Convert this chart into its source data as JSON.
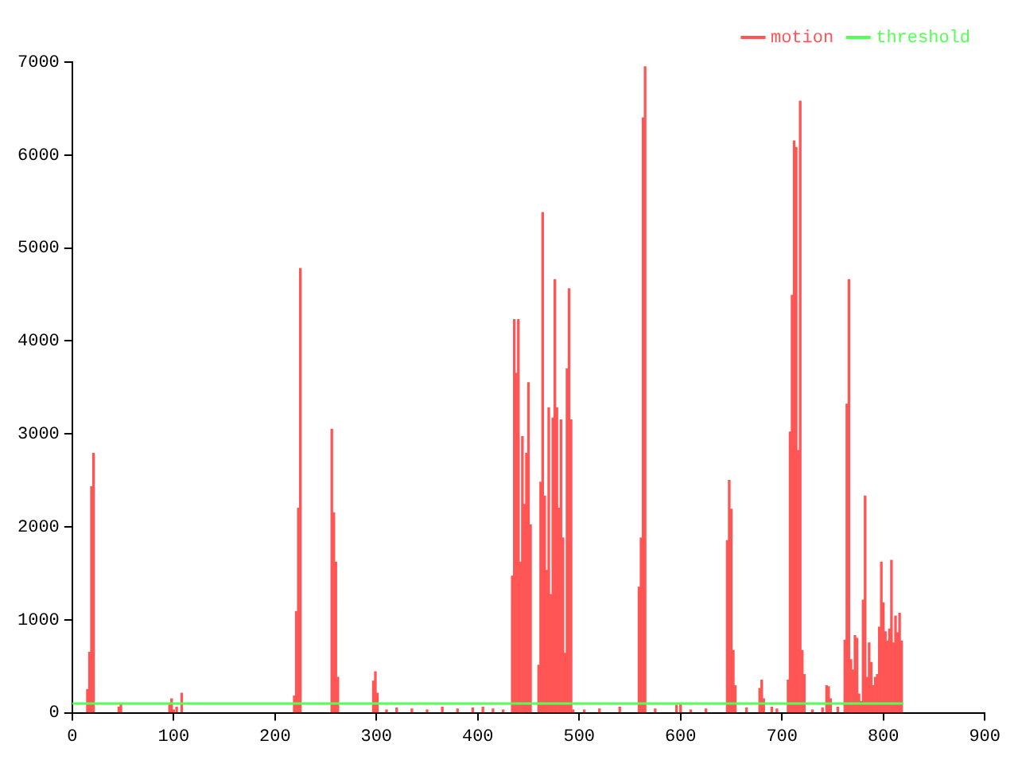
{
  "chart_data": {
    "type": "bar",
    "xlim": [
      0,
      900
    ],
    "xticks": [
      0,
      100,
      200,
      300,
      400,
      500,
      600,
      700,
      800,
      900
    ],
    "ylim": [
      0,
      7000
    ],
    "yticks": [
      0,
      1000,
      2000,
      3000,
      4000,
      5000,
      6000,
      7000
    ],
    "grid": false,
    "legend": "top right",
    "series": [
      {
        "name": "motion",
        "color": "#ff5555",
        "x": [
          15,
          17,
          19,
          21,
          46,
          48,
          96,
          98,
          100,
          103,
          108,
          219,
          221,
          223,
          225,
          256,
          258,
          260,
          262,
          297,
          299,
          301,
          310,
          320,
          335,
          350,
          365,
          380,
          395,
          405,
          415,
          425,
          434,
          436,
          438,
          440,
          442,
          444,
          446,
          448,
          450,
          452,
          460,
          462,
          464,
          466,
          468,
          470,
          472,
          474,
          476,
          478,
          480,
          482,
          484,
          486,
          488,
          490,
          492,
          494,
          505,
          520,
          540,
          559,
          561,
          563,
          565,
          575,
          596,
          600,
          610,
          625,
          646,
          648,
          650,
          652,
          654,
          665,
          678,
          680,
          682,
          690,
          695,
          706,
          708,
          710,
          712,
          714,
          716,
          718,
          720,
          722,
          730,
          740,
          744,
          746,
          748,
          755,
          762,
          764,
          766,
          768,
          770,
          772,
          774,
          776,
          778,
          780,
          782,
          784,
          786,
          788,
          790,
          792,
          794,
          796,
          798,
          800,
          802,
          804,
          806,
          808,
          810,
          812,
          814,
          816,
          818
        ],
        "values": [
          250,
          650,
          2430,
          2790,
          60,
          100,
          100,
          150,
          30,
          60,
          210,
          180,
          1090,
          2200,
          4780,
          3050,
          2150,
          1620,
          380,
          340,
          440,
          210,
          30,
          50,
          40,
          30,
          60,
          40,
          50,
          60,
          40,
          30,
          1470,
          4230,
          3650,
          4230,
          1620,
          2970,
          2240,
          2790,
          3550,
          2020,
          510,
          2480,
          5380,
          2330,
          1530,
          3280,
          1270,
          3170,
          4660,
          3280,
          2200,
          3150,
          1880,
          640,
          3700,
          4560,
          3150,
          30,
          30,
          40,
          60,
          1350,
          1880,
          6400,
          6950,
          40,
          80,
          100,
          30,
          40,
          1850,
          2500,
          2190,
          670,
          290,
          50,
          260,
          350,
          150,
          60,
          40,
          350,
          3020,
          4490,
          6150,
          6080,
          2820,
          6580,
          670,
          410,
          30,
          50,
          290,
          280,
          150,
          60,
          780,
          3320,
          4660,
          570,
          460,
          830,
          800,
          200,
          120,
          1210,
          2330,
          380,
          750,
          540,
          290,
          380,
          410,
          920,
          1620,
          1180,
          870,
          770,
          900,
          1640,
          750,
          1040,
          860,
          1070,
          770
        ]
      },
      {
        "name": "threshold",
        "type": "line",
        "color": "#55ff55",
        "x": [
          0,
          820
        ],
        "values": [
          100,
          100
        ]
      }
    ]
  }
}
